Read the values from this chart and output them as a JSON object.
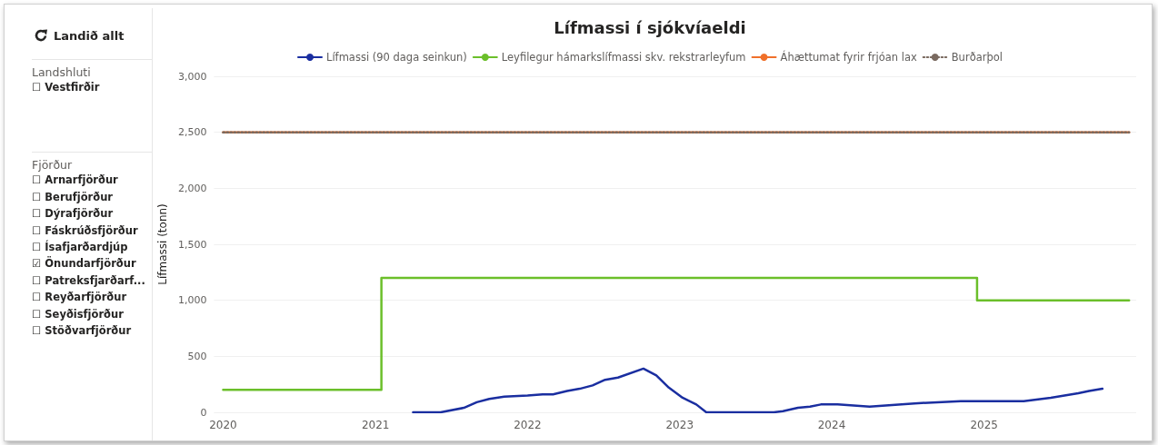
{
  "chart_data": [
    {
      "type": "other",
      "annotations": [
        "Landið allt",
        "Landshluti",
        "☐ Vestfirðir",
        "Fjörður",
        "☐ Arnarfjörður",
        "☐ Berufjörður",
        "☐ Dýrafjörður",
        "☐ Fáskrúðsfjörður",
        "☐ Ísafjarðardjúp",
        "☑ Önundarfjörður",
        "☐ Patreksfjarðarf...",
        "☐ Reyðarfjörður",
        "☐ Seyðisfjörður",
        "☐ Stöðvarfjörður"
      ]
    },
    {
      "type": "line",
      "title": "Lífmassi í sjókvíaeldi",
      "ylabel": "Lífmassi (tonn)",
      "xlim": [
        "2019-12-10",
        "2026-01-01"
      ],
      "xticks": [
        "2020",
        "2021",
        "2022",
        "2023",
        "2024",
        "2025"
      ],
      "ylim": [
        0,
        3000
      ],
      "yticks": [
        0,
        {
          "value": 500,
          "label": "500"
        },
        {
          "value": 1000,
          "label": "1,000"
        },
        {
          "value": 1500,
          "label": "1,500"
        },
        {
          "value": 2000,
          "label": "2,000"
        },
        {
          "value": 2500,
          "label": "2,500"
        },
        {
          "value": 3000,
          "label": "3,000"
        }
      ],
      "grid": "y",
      "legend": "top",
      "marker": "none",
      "series": [
        {
          "name": "Lífmassi (90 daga seinkun)",
          "type": "line",
          "color": "#1a2ea0",
          "x": [
            "2021-04-01",
            "2021-06-06",
            "2021-08-01",
            "2021-09-01",
            "2021-10-01",
            "2021-11-06",
            "2022-01-01",
            "2022-02-06",
            "2022-03-03",
            "2022-04-06",
            "2022-05-06",
            "2022-06-06",
            "2022-07-06",
            "2022-08-06",
            "2022-10-06",
            "2022-11-06",
            "2022-12-06",
            "2023-01-08",
            "2023-02-10",
            "2023-03-06",
            "2023-08-15",
            "2023-09-06",
            "2023-10-12",
            "2023-11-10",
            "2023-12-06",
            "2024-01-15",
            "2024-04-01",
            "2024-07-18",
            "2024-11-06",
            "2025-04-06",
            "2025-06-10",
            "2025-08-15",
            "2025-09-10",
            "2025-10-12"
          ],
          "values": [
            0,
            0,
            40,
            90,
            120,
            140,
            150,
            160,
            160,
            190,
            210,
            240,
            290,
            310,
            390,
            330,
            220,
            130,
            70,
            0,
            0,
            10,
            40,
            50,
            70,
            70,
            50,
            80,
            100,
            100,
            130,
            170,
            190,
            210
          ]
        },
        {
          "name": "Leyfilegur hámarkslífmassi skv. rekstrarleyfum",
          "type": "step",
          "color": "#6bbf2a",
          "x": [
            "2020-01-01",
            "2021-01-15",
            "2024-12-15",
            "2025-12-15"
          ],
          "values": [
            200,
            1200,
            1000,
            1000
          ]
        },
        {
          "name": "Áhættumat fyrir frjóan lax",
          "type": "line",
          "color": "#f0702a",
          "x": [
            "2020-01-01",
            "2025-12-15"
          ],
          "values": [
            2500,
            2500
          ]
        },
        {
          "name": "Burðarþol",
          "type": "line",
          "color": "#7a6a60",
          "line_style": "dotted",
          "x": [
            "2020-01-01",
            "2025-12-15"
          ],
          "values": [
            2500,
            2500
          ]
        }
      ]
    }
  ]
}
